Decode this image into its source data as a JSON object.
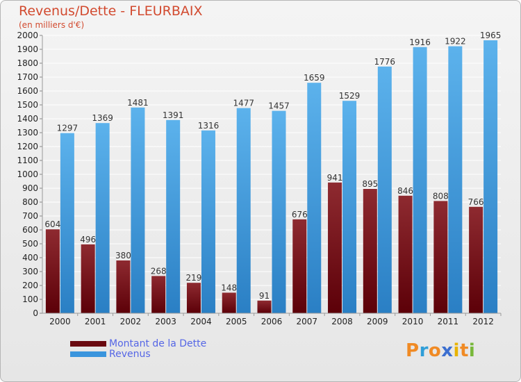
{
  "title": "Revenus/Dette - FLEURBAIX",
  "subtitle": "(en milliers d'€)",
  "brand": {
    "letters": [
      "P",
      "r",
      "o",
      "x",
      "i",
      "t",
      "i"
    ],
    "colors": [
      "#f08a24",
      "#2f9ed8",
      "#f08a24",
      "#3c6fd0",
      "#e8b300",
      "#f08a24",
      "#78b83a"
    ]
  },
  "colors": {
    "dette": "#7a0f16",
    "revenus": "#3a95dd",
    "title": "#d24a2f",
    "legend_text": "#5566e6"
  },
  "chart_data": {
    "type": "bar",
    "title": "Revenus/Dette - FLEURBAIX",
    "ylabel": "(en milliers d'€)",
    "categories": [
      "2000",
      "2001",
      "2002",
      "2003",
      "2004",
      "2005",
      "2006",
      "2007",
      "2008",
      "2009",
      "2010",
      "2011",
      "2012"
    ],
    "series": [
      {
        "name": "Montant de la Dette",
        "values": [
          604,
          496,
          380,
          268,
          219,
          148,
          91,
          676,
          941,
          895,
          846,
          808,
          766
        ]
      },
      {
        "name": "Revenus",
        "values": [
          1297,
          1369,
          1481,
          1391,
          1316,
          1477,
          1457,
          1659,
          1529,
          1776,
          1916,
          1922,
          1965
        ]
      }
    ],
    "ylim": [
      0,
      2000
    ],
    "yticks": [
      0,
      100,
      200,
      300,
      400,
      500,
      600,
      700,
      800,
      900,
      1000,
      1100,
      1200,
      1300,
      1400,
      1500,
      1600,
      1700,
      1800,
      1900,
      2000
    ],
    "grid": true,
    "legend": "bottom-left"
  }
}
